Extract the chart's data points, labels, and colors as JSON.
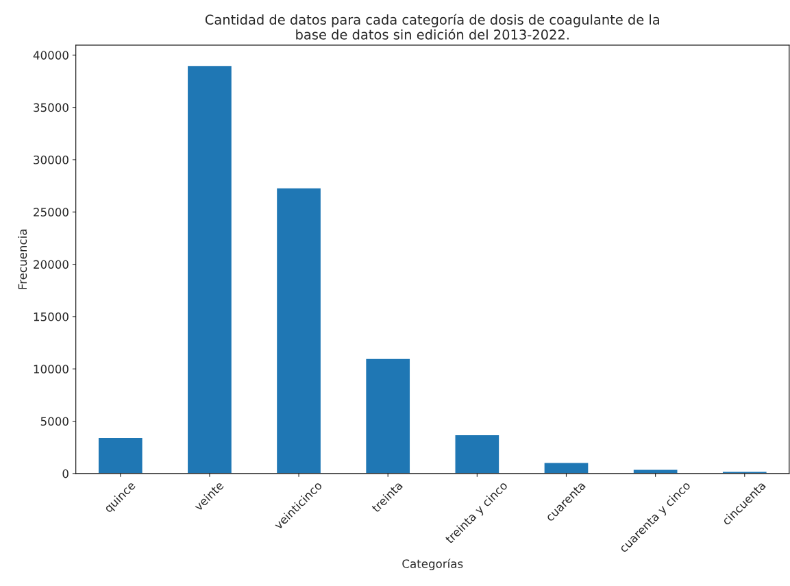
{
  "chart_data": {
    "type": "bar",
    "title": "Cantidad de datos para cada categoría de dosis de coagulante de la\nbase de datos sin edición del 2013-2022.",
    "xlabel": "Categorías",
    "ylabel": "Frecuencia",
    "categories": [
      "quince",
      "veinte",
      "veinticinco",
      "treinta",
      "treinta y cinco",
      "cuarenta",
      "cuarenta y cinco",
      "cincuenta"
    ],
    "values": [
      3450,
      39000,
      27300,
      11000,
      3700,
      1050,
      400,
      200
    ],
    "color": "#1f77b4",
    "ylim": [
      0,
      40950
    ],
    "yticks": [
      0,
      5000,
      10000,
      15000,
      20000,
      25000,
      30000,
      35000,
      40000
    ],
    "grid": false
  }
}
